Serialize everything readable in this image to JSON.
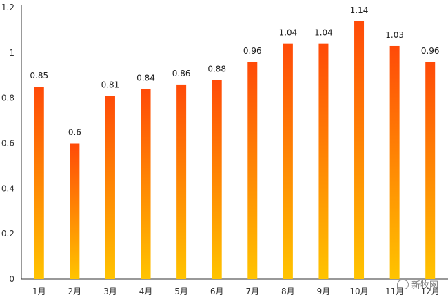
{
  "chart_data": {
    "type": "bar",
    "title": "",
    "xlabel": "",
    "ylabel": "",
    "categories": [
      "1月",
      "2月",
      "3月",
      "4月",
      "5月",
      "6月",
      "7月",
      "8月",
      "9月",
      "10月",
      "11月",
      "12月"
    ],
    "values": [
      0.85,
      0.6,
      0.81,
      0.84,
      0.86,
      0.88,
      0.96,
      1.04,
      1.04,
      1.14,
      1.03,
      0.96
    ],
    "value_labels": [
      "0.85",
      "0.6",
      "0.81",
      "0.84",
      "0.86",
      "0.88",
      "0.96",
      "1.04",
      "1.04",
      "1.14",
      "1.03",
      "0.96"
    ],
    "ylim": [
      0,
      1.2
    ],
    "yticks": [
      "0",
      "0.2",
      "0.4",
      "0.6",
      "0.8",
      "1",
      "1.2"
    ],
    "ytick_values": [
      0,
      0.2,
      0.4,
      0.6,
      0.8,
      1.0,
      1.2
    ],
    "grid": false,
    "bar_gradient": {
      "top": "#ff4a08",
      "bottom": "#ffc400"
    },
    "axis_color": "#333333"
  },
  "watermark": {
    "text": "新牧网",
    "icon": "chat-bubble-icon"
  }
}
